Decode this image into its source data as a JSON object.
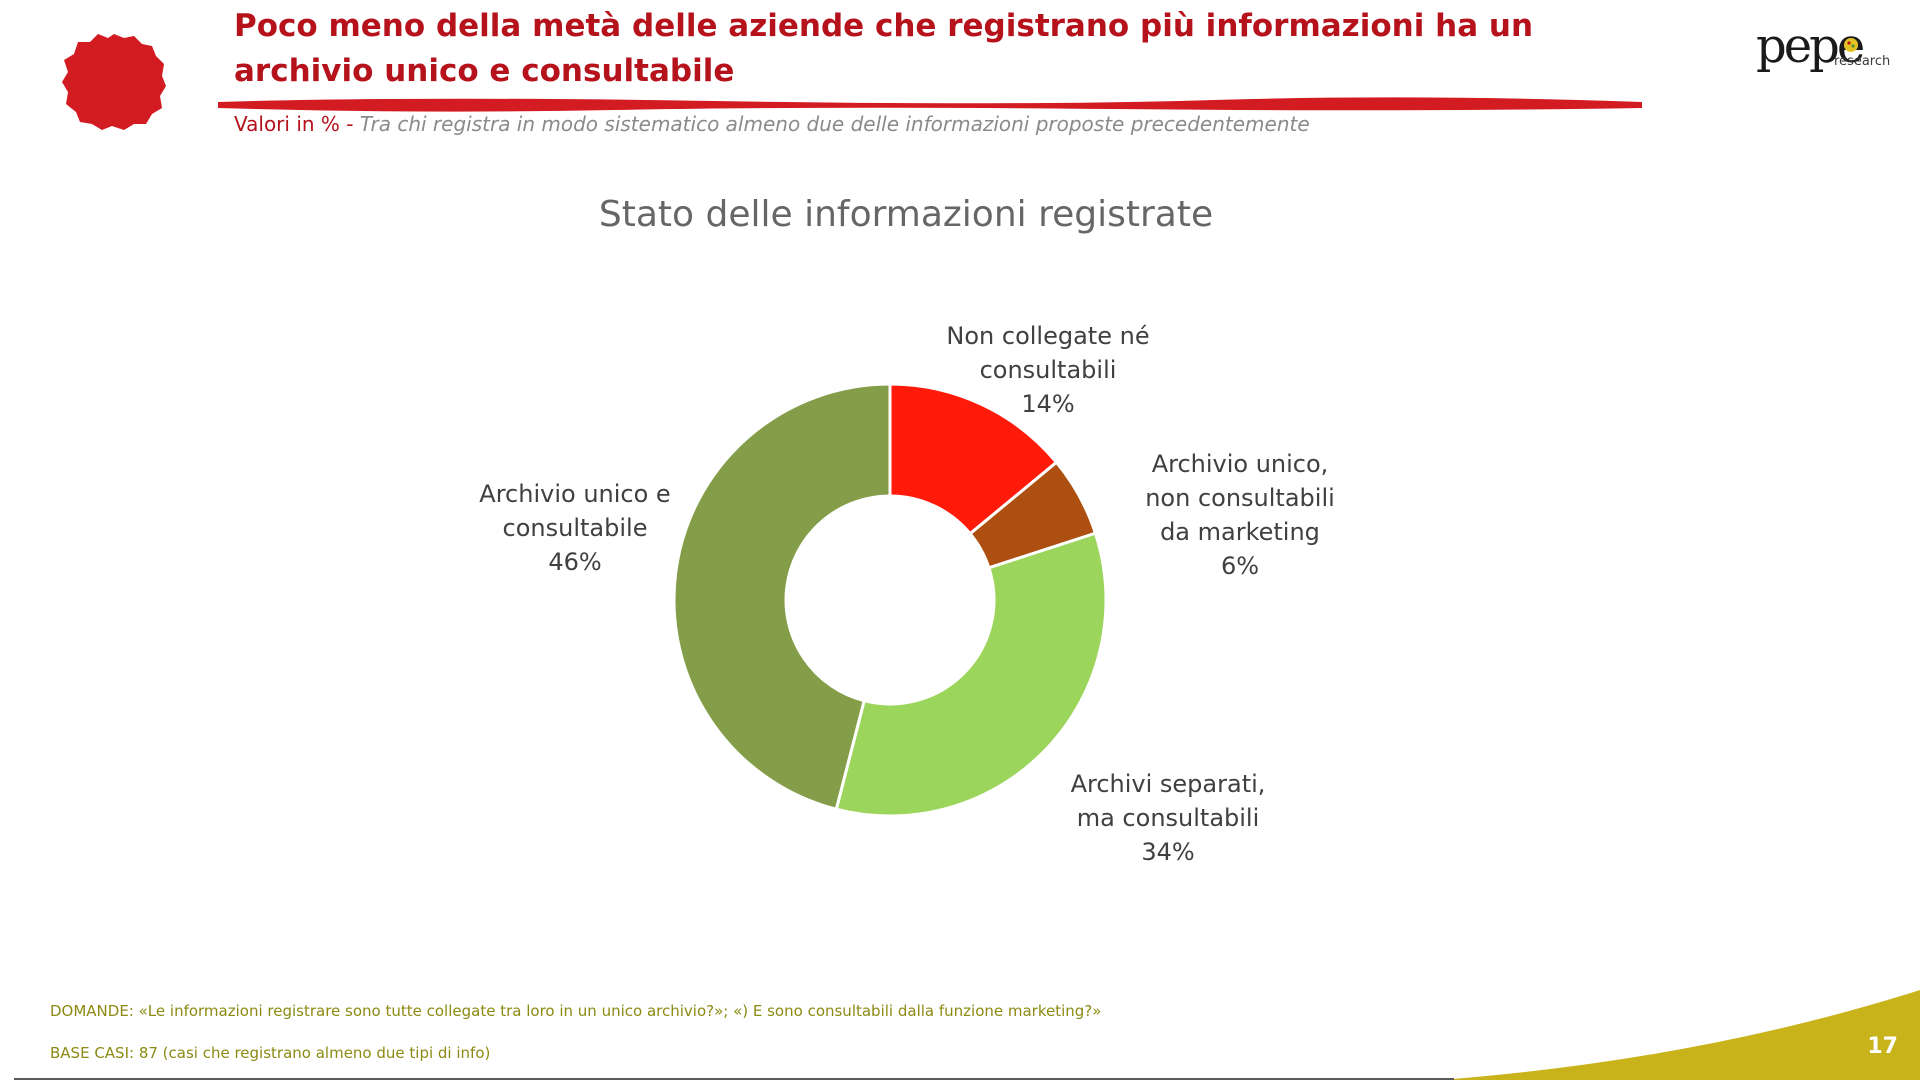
{
  "header": {
    "title": "Poco meno della metà delle aziende che registrano più informazioni ha un archivio unico e consultabile",
    "subtitle_lead": "Valori in % - ",
    "subtitle_rest": "Tra chi registra in modo sistematico almeno due delle informazioni proposte precedentemente"
  },
  "logo": {
    "word": "pepe",
    "sub": "research",
    "icon": "pepe-research-logo"
  },
  "chart_data": {
    "type": "pie",
    "donut": true,
    "title": "Stato delle informazioni registrate",
    "start_angle_deg": 0,
    "direction": "clockwise",
    "slices": [
      {
        "label": [
          "Non collegate né",
          "consultabili"
        ],
        "value": 14,
        "value_label": "14%",
        "color": "#ff1a0a"
      },
      {
        "label": [
          "Archivio unico,",
          "non consultabili",
          "da marketing"
        ],
        "value": 6,
        "value_label": "6%",
        "color": "#ad4f10"
      },
      {
        "label": [
          "Archivi separati,",
          "ma consultabili"
        ],
        "value": 34,
        "value_label": "34%",
        "color": "#9cd55c"
      },
      {
        "label": [
          "Archivio unico e",
          "consultabile"
        ],
        "value": 46,
        "value_label": "46%",
        "color": "#839d48"
      }
    ],
    "legend": "none",
    "data_labels": "outside"
  },
  "footer": {
    "questions": "DOMANDE: «Le informazioni registrare sono tutte collegate tra loro in un unico archivio?»; «) E sono consultabili dalla funzione marketing?»",
    "base": "BASE CASI: 87 (casi che registrano almeno due tipi di info)",
    "page_number": "17"
  },
  "colors": {
    "accent_red": "#b5121b",
    "footer_olive": "#8c8a12",
    "swoosh_gold": "#c8b31a"
  }
}
